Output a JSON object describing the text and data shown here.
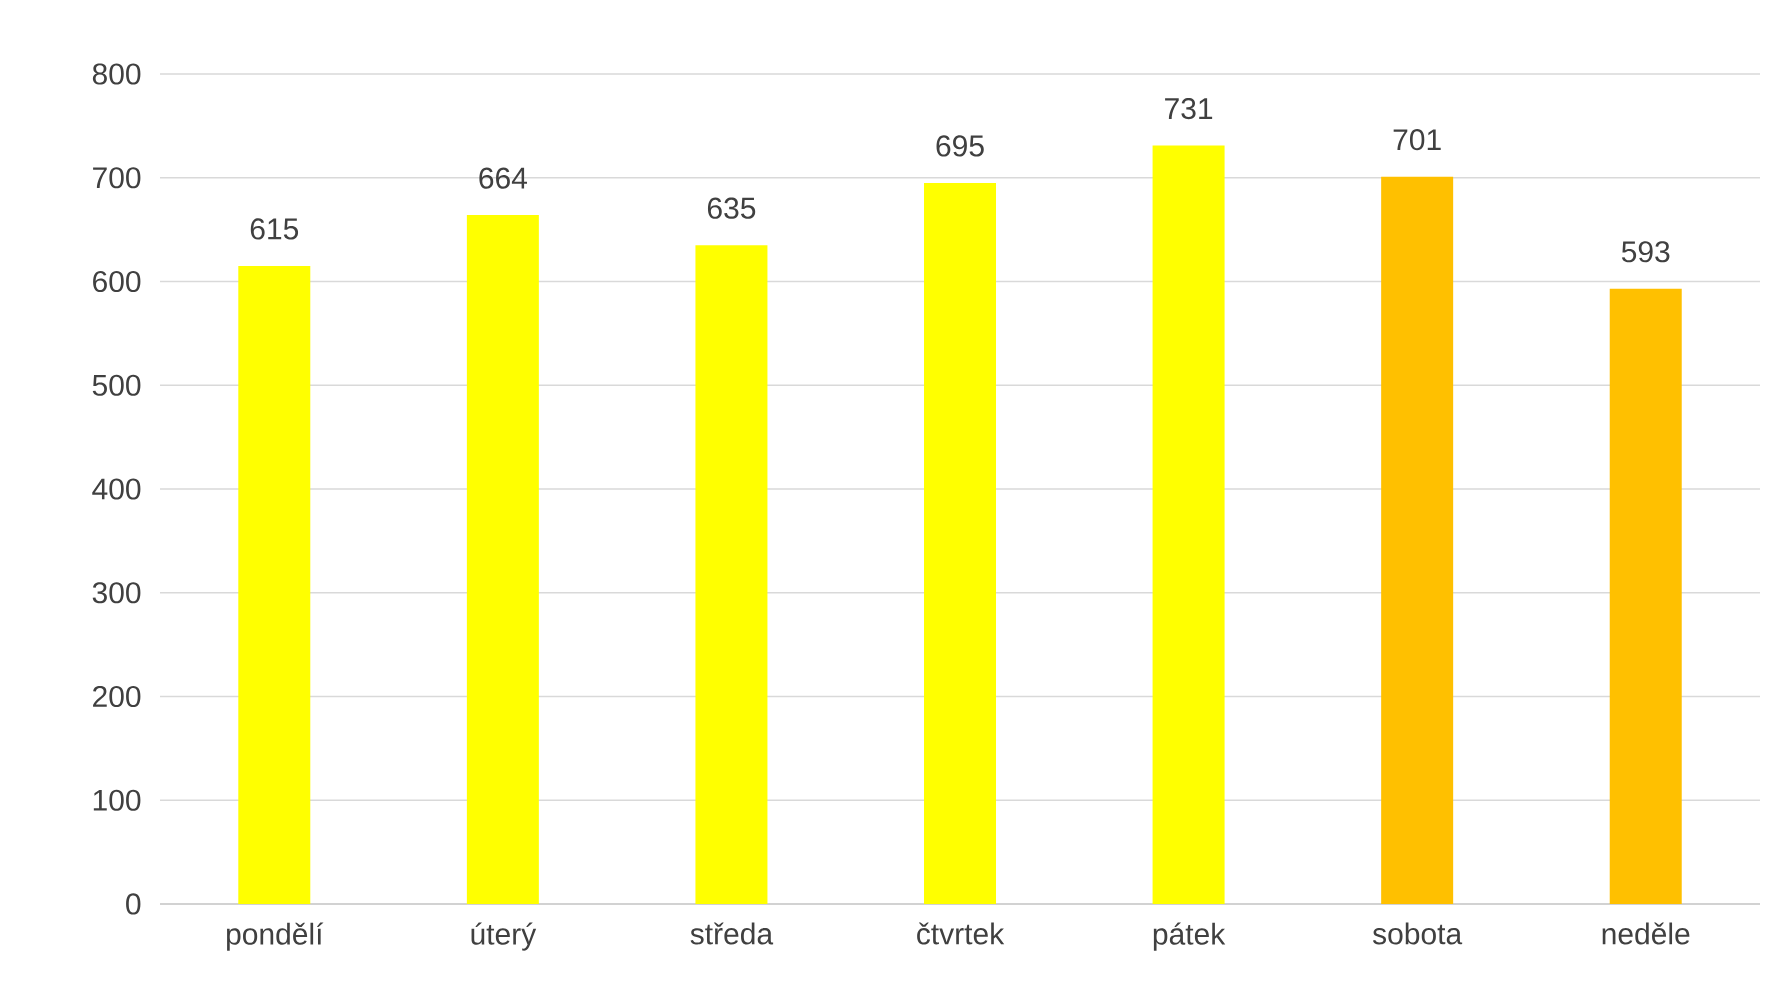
{
  "chart_data": {
    "type": "bar",
    "categories": [
      "pondělí",
      "úterý",
      "středa",
      "čtvrtek",
      "pátek",
      "sobota",
      "neděle"
    ],
    "values": [
      615,
      664,
      635,
      695,
      731,
      701,
      593
    ],
    "colors": [
      "#ffff00",
      "#ffff00",
      "#ffff00",
      "#ffff00",
      "#ffff00",
      "#ffc000",
      "#ffc000"
    ],
    "ylim": [
      0,
      800
    ],
    "yticks": [
      0,
      100,
      200,
      300,
      400,
      500,
      600,
      700,
      800
    ],
    "grid": "y",
    "data_labels": true
  }
}
